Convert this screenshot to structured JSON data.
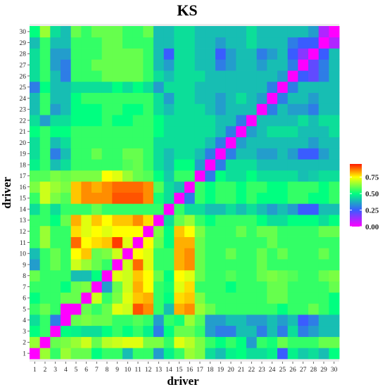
{
  "chart_data": {
    "type": "heatmap",
    "title": "KS",
    "xlabel": "driver",
    "ylabel": "driver",
    "x_categories": [
      "1",
      "2",
      "3",
      "4",
      "5",
      "6",
      "7",
      "8",
      "9",
      "10",
      "11",
      "12",
      "13",
      "14",
      "15",
      "16",
      "17",
      "18",
      "19",
      "20",
      "21",
      "22",
      "23",
      "24",
      "25",
      "26",
      "27",
      "28",
      "29",
      "30"
    ],
    "y_categories": [
      "1",
      "2",
      "3",
      "4",
      "5",
      "6",
      "7",
      "8",
      "9",
      "10",
      "11",
      "12",
      "13",
      "14",
      "15",
      "16",
      "17",
      "18",
      "19",
      "20",
      "21",
      "22",
      "23",
      "24",
      "25",
      "26",
      "27",
      "28",
      "29",
      "30"
    ],
    "color_scale": {
      "colors": [
        "#ff00ff",
        "#3a5cff",
        "#00ff80",
        "#ffff00",
        "#ff1a00"
      ],
      "stops": [
        0.0,
        0.25,
        0.5,
        0.75,
        0.95
      ],
      "range": [
        0,
        0.95
      ]
    },
    "legend": {
      "position": "right",
      "ticks": [
        "0.00",
        "0.25",
        "0.50",
        "0.75"
      ]
    },
    "values": [
      [
        0.0,
        0.65,
        0.55,
        0.65,
        0.6,
        0.6,
        0.5,
        0.55,
        0.55,
        0.4,
        0.55,
        0.55,
        0.35,
        0.48,
        0.55,
        0.65,
        0.62,
        0.45,
        0.4,
        0.48,
        0.5,
        0.45,
        0.45,
        0.48,
        0.25,
        0.48,
        0.42,
        0.45,
        0.4,
        0.5
      ],
      [
        0.65,
        0.0,
        0.6,
        0.62,
        0.65,
        0.7,
        0.6,
        0.68,
        0.7,
        0.72,
        0.72,
        0.62,
        0.62,
        0.55,
        0.72,
        0.68,
        0.62,
        0.55,
        0.5,
        0.55,
        0.5,
        0.35,
        0.55,
        0.52,
        0.6,
        0.55,
        0.55,
        0.55,
        0.6,
        0.6
      ],
      [
        0.5,
        0.55,
        0.0,
        0.5,
        0.48,
        0.45,
        0.45,
        0.5,
        0.55,
        0.5,
        0.55,
        0.48,
        0.3,
        0.5,
        0.6,
        0.6,
        0.55,
        0.35,
        0.3,
        0.3,
        0.4,
        0.4,
        0.3,
        0.4,
        0.3,
        0.45,
        0.3,
        0.35,
        0.4,
        0.4
      ],
      [
        0.45,
        0.55,
        0.3,
        0.0,
        0.6,
        0.62,
        0.6,
        0.6,
        0.55,
        0.55,
        0.58,
        0.55,
        0.35,
        0.55,
        0.52,
        0.65,
        0.58,
        0.35,
        0.35,
        0.4,
        0.4,
        0.35,
        0.35,
        0.4,
        0.35,
        0.4,
        0.25,
        0.3,
        0.4,
        0.4
      ],
      [
        0.55,
        0.6,
        0.55,
        0.0,
        0.0,
        0.6,
        0.55,
        0.6,
        0.72,
        0.7,
        0.9,
        0.85,
        0.55,
        0.4,
        0.82,
        0.85,
        0.65,
        0.6,
        0.55,
        0.55,
        0.55,
        0.55,
        0.55,
        0.55,
        0.5,
        0.55,
        0.55,
        0.6,
        0.55,
        0.5
      ],
      [
        0.5,
        0.55,
        0.55,
        0.6,
        0.6,
        0.0,
        0.7,
        0.55,
        0.62,
        0.72,
        0.8,
        0.82,
        0.55,
        0.5,
        0.78,
        0.8,
        0.62,
        0.55,
        0.55,
        0.55,
        0.55,
        0.55,
        0.55,
        0.6,
        0.6,
        0.55,
        0.55,
        0.55,
        0.55,
        0.5
      ],
      [
        0.55,
        0.55,
        0.55,
        0.5,
        0.6,
        0.62,
        0.0,
        0.35,
        0.6,
        0.7,
        0.82,
        0.75,
        0.55,
        0.52,
        0.72,
        0.78,
        0.55,
        0.55,
        0.55,
        0.5,
        0.55,
        0.55,
        0.55,
        0.6,
        0.6,
        0.55,
        0.55,
        0.55,
        0.55,
        0.6
      ],
      [
        0.6,
        0.55,
        0.55,
        0.55,
        0.4,
        0.4,
        0.5,
        0.0,
        0.72,
        0.7,
        0.8,
        0.75,
        0.6,
        0.5,
        0.75,
        0.72,
        0.6,
        0.55,
        0.55,
        0.58,
        0.55,
        0.55,
        0.6,
        0.62,
        0.6,
        0.58,
        0.55,
        0.55,
        0.6,
        0.62
      ],
      [
        0.35,
        0.55,
        0.6,
        0.55,
        0.7,
        0.65,
        0.6,
        0.55,
        0.0,
        0.7,
        0.88,
        0.72,
        0.55,
        0.55,
        0.82,
        0.85,
        0.6,
        0.55,
        0.55,
        0.55,
        0.55,
        0.55,
        0.6,
        0.55,
        0.55,
        0.55,
        0.55,
        0.55,
        0.55,
        0.55
      ],
      [
        0.4,
        0.55,
        0.6,
        0.55,
        0.75,
        0.8,
        0.6,
        0.62,
        0.7,
        0.0,
        0.75,
        0.72,
        0.55,
        0.55,
        0.82,
        0.85,
        0.6,
        0.55,
        0.55,
        0.6,
        0.55,
        0.55,
        0.6,
        0.55,
        0.6,
        0.55,
        0.55,
        0.55,
        0.6,
        0.55
      ],
      [
        0.55,
        0.65,
        0.55,
        0.55,
        0.88,
        0.75,
        0.78,
        0.8,
        0.92,
        0.72,
        0.0,
        0.75,
        0.6,
        0.5,
        0.82,
        0.82,
        0.6,
        0.55,
        0.55,
        0.55,
        0.55,
        0.55,
        0.55,
        0.6,
        0.55,
        0.55,
        0.55,
        0.55,
        0.55,
        0.55
      ],
      [
        0.55,
        0.65,
        0.55,
        0.55,
        0.78,
        0.72,
        0.75,
        0.72,
        0.75,
        0.75,
        0.75,
        0.0,
        0.62,
        0.5,
        0.8,
        0.75,
        0.62,
        0.55,
        0.55,
        0.55,
        0.6,
        0.55,
        0.6,
        0.6,
        0.55,
        0.55,
        0.55,
        0.55,
        0.6,
        0.6
      ],
      [
        0.55,
        0.55,
        0.5,
        0.6,
        0.82,
        0.72,
        0.8,
        0.75,
        0.8,
        0.8,
        0.85,
        0.78,
        0.0,
        0.45,
        0.6,
        0.65,
        0.55,
        0.5,
        0.55,
        0.55,
        0.55,
        0.55,
        0.5,
        0.45,
        0.45,
        0.5,
        0.5,
        0.5,
        0.45,
        0.5
      ],
      [
        0.45,
        0.55,
        0.45,
        0.55,
        0.55,
        0.55,
        0.6,
        0.55,
        0.55,
        0.55,
        0.55,
        0.55,
        0.55,
        0.0,
        0.55,
        0.45,
        0.45,
        0.4,
        0.4,
        0.45,
        0.4,
        0.45,
        0.4,
        0.35,
        0.4,
        0.35,
        0.25,
        0.25,
        0.4,
        0.4
      ],
      [
        0.55,
        0.7,
        0.62,
        0.58,
        0.8,
        0.85,
        0.85,
        0.85,
        0.9,
        0.9,
        0.9,
        0.85,
        0.52,
        0.45,
        0.0,
        0.3,
        0.55,
        0.5,
        0.55,
        0.55,
        0.5,
        0.55,
        0.5,
        0.5,
        0.5,
        0.55,
        0.55,
        0.5,
        0.5,
        0.55
      ],
      [
        0.62,
        0.7,
        0.65,
        0.62,
        0.8,
        0.85,
        0.82,
        0.85,
        0.88,
        0.88,
        0.88,
        0.85,
        0.58,
        0.45,
        0.4,
        0.0,
        0.55,
        0.5,
        0.55,
        0.55,
        0.5,
        0.55,
        0.55,
        0.5,
        0.5,
        0.55,
        0.55,
        0.55,
        0.5,
        0.55
      ],
      [
        0.58,
        0.58,
        0.62,
        0.6,
        0.62,
        0.62,
        0.62,
        0.75,
        0.72,
        0.65,
        0.6,
        0.58,
        0.5,
        0.42,
        0.55,
        0.55,
        0.0,
        0.3,
        0.5,
        0.45,
        0.45,
        0.5,
        0.45,
        0.45,
        0.45,
        0.45,
        0.4,
        0.42,
        0.45,
        0.45
      ],
      [
        0.48,
        0.55,
        0.4,
        0.45,
        0.55,
        0.55,
        0.55,
        0.55,
        0.55,
        0.58,
        0.6,
        0.55,
        0.45,
        0.4,
        0.5,
        0.5,
        0.35,
        0.0,
        0.3,
        0.45,
        0.45,
        0.45,
        0.4,
        0.4,
        0.4,
        0.4,
        0.4,
        0.4,
        0.4,
        0.4
      ],
      [
        0.45,
        0.55,
        0.3,
        0.4,
        0.55,
        0.55,
        0.6,
        0.55,
        0.55,
        0.6,
        0.6,
        0.55,
        0.45,
        0.4,
        0.45,
        0.45,
        0.4,
        0.3,
        0.0,
        0.3,
        0.4,
        0.4,
        0.35,
        0.35,
        0.4,
        0.35,
        0.25,
        0.25,
        0.35,
        0.4
      ],
      [
        0.45,
        0.55,
        0.4,
        0.45,
        0.55,
        0.55,
        0.55,
        0.55,
        0.55,
        0.55,
        0.55,
        0.55,
        0.45,
        0.45,
        0.45,
        0.45,
        0.45,
        0.4,
        0.3,
        0.0,
        0.35,
        0.4,
        0.4,
        0.4,
        0.4,
        0.4,
        0.4,
        0.35,
        0.4,
        0.4
      ],
      [
        0.5,
        0.55,
        0.5,
        0.5,
        0.55,
        0.55,
        0.55,
        0.55,
        0.55,
        0.55,
        0.55,
        0.55,
        0.5,
        0.45,
        0.45,
        0.45,
        0.45,
        0.45,
        0.4,
        0.3,
        0.0,
        0.35,
        0.4,
        0.45,
        0.45,
        0.45,
        0.4,
        0.4,
        0.4,
        0.45
      ],
      [
        0.45,
        0.35,
        0.45,
        0.45,
        0.5,
        0.5,
        0.5,
        0.55,
        0.5,
        0.5,
        0.55,
        0.55,
        0.5,
        0.45,
        0.45,
        0.45,
        0.45,
        0.45,
        0.4,
        0.4,
        0.3,
        0.0,
        0.4,
        0.4,
        0.4,
        0.4,
        0.45,
        0.4,
        0.45,
        0.45
      ],
      [
        0.4,
        0.55,
        0.35,
        0.4,
        0.5,
        0.5,
        0.5,
        0.55,
        0.55,
        0.5,
        0.5,
        0.55,
        0.45,
        0.4,
        0.45,
        0.45,
        0.45,
        0.4,
        0.35,
        0.4,
        0.4,
        0.4,
        0.0,
        0.3,
        0.4,
        0.35,
        0.35,
        0.3,
        0.4,
        0.4
      ],
      [
        0.4,
        0.55,
        0.4,
        0.4,
        0.5,
        0.55,
        0.55,
        0.55,
        0.55,
        0.55,
        0.55,
        0.55,
        0.45,
        0.35,
        0.45,
        0.45,
        0.4,
        0.4,
        0.35,
        0.4,
        0.45,
        0.4,
        0.35,
        0.0,
        0.3,
        0.4,
        0.4,
        0.35,
        0.4,
        0.4
      ],
      [
        0.3,
        0.5,
        0.4,
        0.4,
        0.45,
        0.45,
        0.45,
        0.45,
        0.5,
        0.45,
        0.5,
        0.45,
        0.35,
        0.45,
        0.45,
        0.45,
        0.4,
        0.4,
        0.4,
        0.4,
        0.4,
        0.4,
        0.4,
        0.3,
        0.0,
        0.3,
        0.4,
        0.4,
        0.4,
        0.4
      ],
      [
        0.45,
        0.55,
        0.4,
        0.3,
        0.55,
        0.55,
        0.55,
        0.6,
        0.6,
        0.6,
        0.6,
        0.55,
        0.45,
        0.4,
        0.45,
        0.45,
        0.45,
        0.4,
        0.4,
        0.4,
        0.4,
        0.4,
        0.4,
        0.4,
        0.35,
        0.0,
        0.25,
        0.2,
        0.3,
        0.4
      ],
      [
        0.45,
        0.55,
        0.35,
        0.3,
        0.55,
        0.55,
        0.6,
        0.6,
        0.6,
        0.6,
        0.6,
        0.55,
        0.4,
        0.35,
        0.45,
        0.45,
        0.4,
        0.4,
        0.3,
        0.35,
        0.4,
        0.4,
        0.35,
        0.4,
        0.4,
        0.3,
        0.0,
        0.2,
        0.3,
        0.4
      ],
      [
        0.45,
        0.55,
        0.35,
        0.35,
        0.55,
        0.55,
        0.55,
        0.6,
        0.6,
        0.6,
        0.6,
        0.55,
        0.4,
        0.25,
        0.45,
        0.45,
        0.4,
        0.4,
        0.25,
        0.35,
        0.4,
        0.4,
        0.3,
        0.35,
        0.4,
        0.25,
        0.15,
        0.0,
        0.25,
        0.4
      ],
      [
        0.4,
        0.55,
        0.4,
        0.4,
        0.55,
        0.55,
        0.55,
        0.6,
        0.6,
        0.55,
        0.55,
        0.55,
        0.4,
        0.4,
        0.45,
        0.45,
        0.4,
        0.4,
        0.35,
        0.4,
        0.4,
        0.45,
        0.4,
        0.4,
        0.4,
        0.3,
        0.25,
        0.25,
        0.0,
        0.1
      ],
      [
        0.5,
        0.65,
        0.45,
        0.4,
        0.6,
        0.55,
        0.6,
        0.6,
        0.6,
        0.55,
        0.55,
        0.6,
        0.4,
        0.4,
        0.45,
        0.45,
        0.4,
        0.4,
        0.4,
        0.4,
        0.4,
        0.45,
        0.4,
        0.4,
        0.4,
        0.4,
        0.4,
        0.35,
        0.1,
        0.0
      ]
    ]
  }
}
